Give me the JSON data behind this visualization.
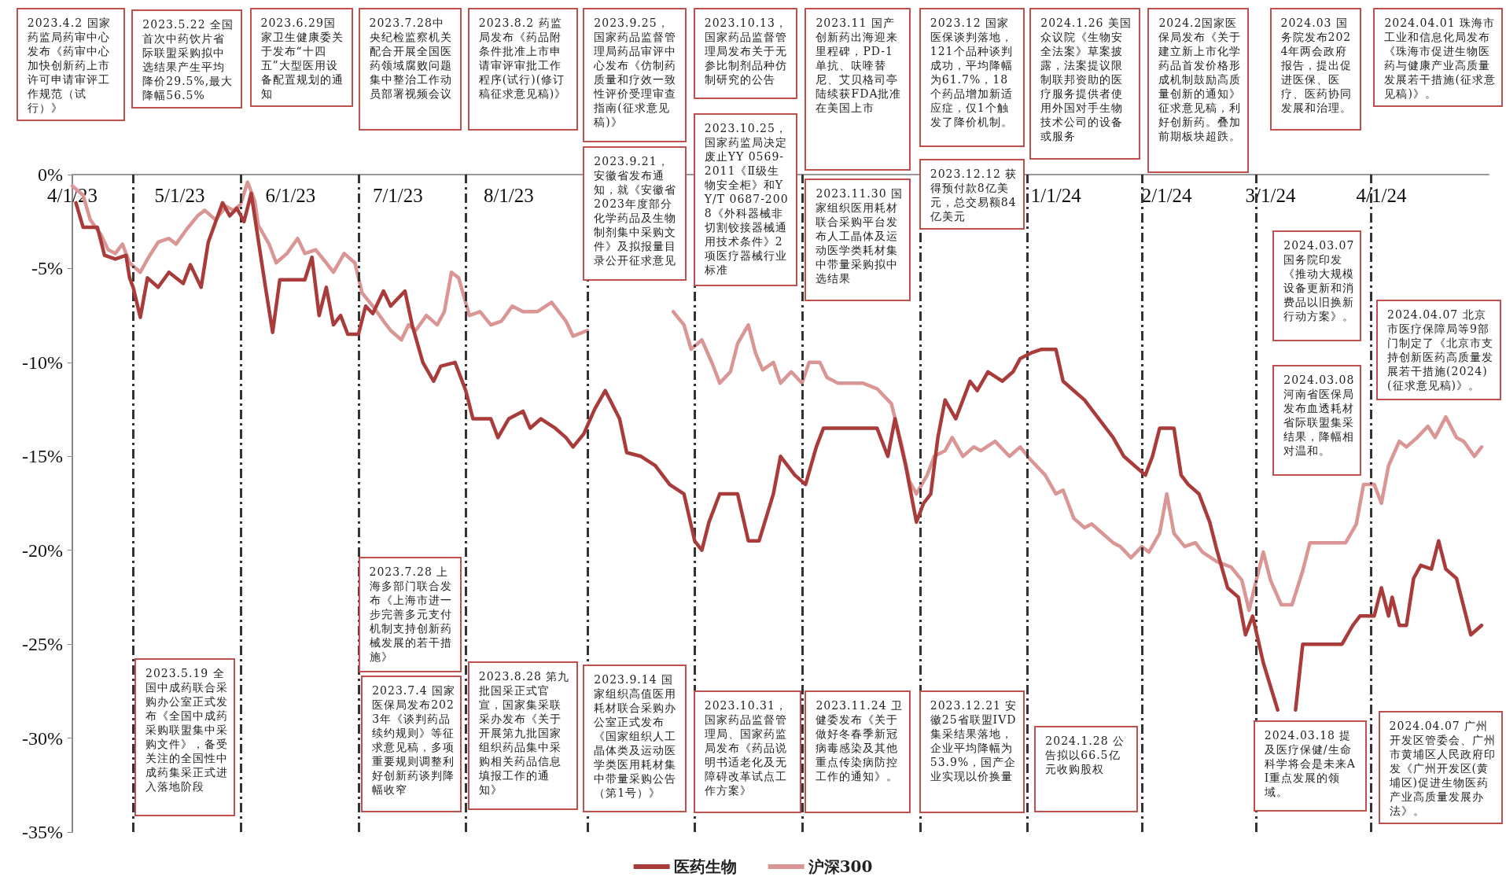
{
  "chart_data": {
    "type": "line",
    "marker": "none",
    "legend": "bottom",
    "xlim": [
      "2023-04-01",
      "2024-05-01"
    ],
    "ylim": [
      -35,
      0
    ],
    "xticks": [
      {
        "value": "2023-04-01",
        "label": "4/1/23"
      },
      {
        "value": "2023-05-01",
        "label": "5/1/23"
      },
      {
        "value": "2023-06-01",
        "label": "6/1/23"
      },
      {
        "value": "2023-07-01",
        "label": "7/1/23"
      },
      {
        "value": "2023-08-01",
        "label": "8/1/23"
      },
      {
        "value": "2024-01-01",
        "label": "1/1/24"
      },
      {
        "value": "2024-02-01",
        "label": "2/1/24"
      },
      {
        "value": "2024-03-01",
        "label": "3/1/24"
      },
      {
        "value": "2024-04-01",
        "label": "4/1/24"
      }
    ],
    "yticks": [
      {
        "value": 0,
        "label": "0%"
      },
      {
        "value": -5,
        "label": "-5%"
      },
      {
        "value": -10,
        "label": "-10%"
      },
      {
        "value": -15,
        "label": "-15%"
      },
      {
        "value": -20,
        "label": "-20%"
      },
      {
        "value": -25,
        "label": "-25%"
      },
      {
        "value": -30,
        "label": "-30%"
      },
      {
        "value": -35,
        "label": "-35%"
      }
    ],
    "series": [
      {
        "name": "医药生物",
        "color": "#a93c3a",
        "x": [
          "2023-04-02",
          "2023-04-04",
          "2023-04-08",
          "2023-04-10",
          "2023-04-13",
          "2023-04-16",
          "2023-04-17",
          "2023-04-18",
          "2023-04-20",
          "2023-04-22",
          "2023-04-25",
          "2023-04-28",
          "2023-05-02",
          "2023-05-04",
          "2023-05-07",
          "2023-05-09",
          "2023-05-13",
          "2023-05-15",
          "2023-05-17",
          "2023-05-19",
          "2023-05-21",
          "2023-05-23",
          "2023-05-25",
          "2023-05-27",
          "2023-05-29",
          "2023-06-05",
          "2023-06-07",
          "2023-06-09",
          "2023-06-11",
          "2023-06-13",
          "2023-06-15",
          "2023-06-17",
          "2023-06-20",
          "2023-06-22",
          "2023-06-24",
          "2023-06-27",
          "2023-06-29",
          "2023-07-03",
          "2023-07-05",
          "2023-07-08",
          "2023-07-11",
          "2023-07-13",
          "2023-07-17",
          "2023-07-20",
          "2023-07-22",
          "2023-07-27",
          "2023-07-29",
          "2023-08-01",
          "2023-08-05",
          "2023-08-07",
          "2023-08-10",
          "2023-08-14",
          "2023-08-17",
          "2023-08-19",
          "2023-08-22",
          "2023-08-25",
          "2023-08-28",
          "2023-09-01",
          "2023-09-03",
          "2023-09-07",
          "2023-09-11",
          "2023-09-15",
          "2023-09-19",
          "2023-09-22",
          "2023-09-24",
          "2023-09-26",
          "2023-09-29",
          "2023-10-04",
          "2023-10-07",
          "2023-10-10",
          "2023-10-14",
          "2023-10-16",
          "2023-10-20",
          "2023-10-23",
          "2023-10-26",
          "2023-10-28",
          "2023-11-08",
          "2023-11-12",
          "2023-11-15",
          "2023-11-17",
          "2023-11-20",
          "2023-11-22",
          "2023-11-23",
          "2023-11-25",
          "2023-11-27",
          "2023-11-29",
          "2023-12-01",
          "2023-12-04",
          "2023-12-06",
          "2023-12-08",
          "2023-12-10",
          "2023-12-13",
          "2023-12-17",
          "2023-12-20",
          "2023-12-22",
          "2023-12-25",
          "2023-12-28",
          "2024-01-01",
          "2024-01-03",
          "2024-01-06",
          "2024-01-09",
          "2024-01-13",
          "2024-01-17",
          "2024-01-20",
          "2024-01-23",
          "2024-01-26",
          "2024-01-28",
          "2024-01-30",
          "2024-02-03",
          "2024-02-05",
          "2024-02-07",
          "2024-02-10",
          "2024-02-13",
          "2024-02-15",
          "2024-02-18",
          "2024-02-21",
          "2024-02-23",
          "2024-02-25",
          "2024-02-28",
          "2024-03-03",
          "2024-03-05",
          "2024-03-08",
          "2024-03-10",
          "2024-03-21",
          "2024-03-24",
          "2024-03-26",
          "2024-03-30",
          "2024-04-01",
          "2024-04-03",
          "2024-04-04",
          "2024-04-06",
          "2024-04-08",
          "2024-04-10",
          "2024-04-12",
          "2024-04-15",
          "2024-04-17",
          "2024-04-19",
          "2024-04-22",
          "2024-04-24",
          "2024-04-26",
          "2024-04-29"
        ],
        "values": [
          -1.5,
          -2.8,
          -2.8,
          -4.3,
          -4.5,
          -4.3,
          -5.5,
          -6,
          -7.6,
          -5.5,
          -6,
          -5.2,
          -5.8,
          -4.8,
          -6,
          -3.6,
          -1.5,
          -2.2,
          -1.8,
          -2.5,
          -1,
          -3.5,
          -6,
          -8.4,
          -5.6,
          -5.6,
          -4.4,
          -7.5,
          -6,
          -8,
          -7.5,
          -8.5,
          -8.5,
          -7,
          -7.4,
          -6.2,
          -7,
          -6.2,
          -8,
          -10,
          -11,
          -10.2,
          -10,
          -11.5,
          -13,
          -13,
          -14,
          -13,
          -12.6,
          -13.5,
          -13,
          -13.5,
          -14,
          -14.5,
          -13.8,
          -12.5,
          -11.5,
          -13,
          -14.8,
          -15,
          -15.5,
          -16.5,
          -17,
          -19.5,
          -20,
          -18.5,
          -17,
          -17,
          -19.5,
          -19.5,
          -17,
          -15,
          -16,
          -16.5,
          -14.5,
          -13.5,
          -13.5,
          -13.5,
          -15,
          -13,
          -15.5,
          -17.5,
          -18.5,
          -17.5,
          -17,
          -14,
          -12,
          -13,
          -12,
          -11,
          -11.5,
          -10.5,
          -11,
          -10.5,
          -9.8,
          -9.5,
          -9.3,
          -9.3,
          -11,
          -11.5,
          -12,
          -13,
          -14,
          -15,
          -15.5,
          -16,
          -15,
          -13.5,
          -13.5,
          -16,
          -16.5,
          -17,
          -18.5,
          -20,
          -22,
          -22.5,
          -24.5,
          -23.5,
          -26,
          -28.5,
          null,
          -28.5,
          -25,
          -25,
          -24,
          -23.5,
          -23.5,
          -22,
          -23.5,
          -22.5,
          -24,
          -24,
          -21.5,
          -20.8,
          -21,
          -19.5,
          -21,
          -21.5,
          -23,
          -24.5,
          -24
        ]
      },
      {
        "name": "沪深300",
        "color": "#d99694",
        "x": [
          "2023-04-01",
          "2023-04-04",
          "2023-04-06",
          "2023-04-09",
          "2023-04-11",
          "2023-04-13",
          "2023-04-15",
          "2023-04-17",
          "2023-04-20",
          "2023-04-22",
          "2023-04-25",
          "2023-04-28",
          "2023-04-30",
          "2023-05-03",
          "2023-05-06",
          "2023-05-08",
          "2023-05-11",
          "2023-05-14",
          "2023-05-16",
          "2023-05-18",
          "2023-05-20",
          "2023-05-22",
          "2023-05-23",
          "2023-05-26",
          "2023-05-28",
          "2023-05-31",
          "2023-06-03",
          "2023-06-05",
          "2023-06-08",
          "2023-06-11",
          "2023-06-13",
          "2023-06-16",
          "2023-06-19",
          "2023-06-21",
          "2023-06-24",
          "2023-06-27",
          "2023-06-29",
          "2023-07-02",
          "2023-07-04",
          "2023-07-06",
          "2023-07-09",
          "2023-07-12",
          "2023-07-14",
          "2023-07-16",
          "2023-07-18",
          "2023-07-21",
          "2023-07-24",
          "2023-07-27",
          "2023-07-30",
          "2023-08-02",
          "2023-08-05",
          "2023-08-09",
          "2023-08-13",
          "2023-08-17",
          "2023-08-19",
          "2023-08-23",
          "2023-08-25",
          "2023-08-26",
          "2023-09-05",
          "2023-09-13",
          "2023-09-16",
          "2023-09-19",
          "2023-09-21",
          "2023-09-24",
          "2023-09-27",
          "2023-09-29",
          "2023-10-02",
          "2023-10-04",
          "2023-10-07",
          "2023-10-09",
          "2023-10-11",
          "2023-10-14",
          "2023-10-16",
          "2023-10-19",
          "2023-10-22",
          "2023-10-24",
          "2023-10-27",
          "2023-10-29",
          "2023-11-01",
          "2023-11-08",
          "2023-11-12",
          "2023-11-16",
          "2023-11-19",
          "2023-11-21",
          "2023-11-23",
          "2023-11-26",
          "2023-11-28",
          "2023-12-01",
          "2023-12-03",
          "2023-12-06",
          "2023-12-09",
          "2023-12-11",
          "2023-12-15",
          "2023-12-19",
          "2023-12-22",
          "2023-12-25",
          "2023-12-29",
          "2024-01-01",
          "2024-01-03",
          "2024-01-06",
          "2024-01-09",
          "2024-01-11",
          "2024-01-14",
          "2024-01-17",
          "2024-01-19",
          "2024-01-22",
          "2024-01-25",
          "2024-01-27",
          "2024-01-30",
          "2024-02-01",
          "2024-02-03",
          "2024-02-06",
          "2024-02-09",
          "2024-02-11",
          "2024-02-15",
          "2024-02-19",
          "2024-02-22",
          "2024-02-24",
          "2024-02-26",
          "2024-02-28",
          "2024-03-01",
          "2024-03-04",
          "2024-03-07",
          "2024-03-10",
          "2024-03-12",
          "2024-03-22",
          "2024-03-25",
          "2024-03-27",
          "2024-03-30",
          "2024-04-01",
          "2024-04-03",
          "2024-04-06",
          "2024-04-08",
          "2024-04-11",
          "2024-04-14",
          "2024-04-16",
          "2024-04-19",
          "2024-04-22",
          "2024-04-24",
          "2024-04-27",
          "2024-04-29"
        ],
        "values": [
          -0.6,
          -1.1,
          -2.4,
          -3.2,
          -4,
          -4.2,
          -3.7,
          -4.7,
          -5.2,
          -4.5,
          -3.6,
          -3.4,
          -3.7,
          -2.9,
          -2.2,
          -1.9,
          -2.4,
          -1.7,
          -1.9,
          -1.6,
          -0.4,
          -1.4,
          -2.7,
          -3.7,
          -4.7,
          -4.2,
          -3.4,
          -4.2,
          -4,
          -4.7,
          -5.2,
          -4.2,
          -4.7,
          -6.3,
          -7,
          -7.8,
          -8.3,
          -8.8,
          -8,
          -8.3,
          -7.5,
          -8,
          -7.3,
          -5.2,
          -5.5,
          -7.5,
          -7.3,
          -8,
          -7.8,
          -7,
          -7.3,
          -7.3,
          -6.8,
          -7.8,
          -8.6,
          -8.3,
          null,
          null,
          null,
          null,
          -7.3,
          -8,
          -9.3,
          -8.8,
          -10.1,
          -11.1,
          -10.5,
          -9,
          -8,
          -9.5,
          -10.4,
          -10,
          -11.1,
          -10.5,
          -11.1,
          -10,
          -10,
          -10.8,
          -11.1,
          -11.1,
          -11.4,
          -12.2,
          -14.5,
          -16.3,
          -17,
          -16,
          -15,
          -14.7,
          -14,
          -15,
          -14.5,
          -14.7,
          -14.2,
          -15,
          -14.5,
          -15.2,
          -16,
          -17,
          -16.8,
          -18.3,
          -18.8,
          -18.6,
          -19.1,
          -19.6,
          -19.8,
          -20.4,
          -19.8,
          -20.1,
          -19.1,
          -17,
          -19.1,
          -19.8,
          -19.6,
          -20.1,
          -20.6,
          -20.9,
          -21.6,
          -23.2,
          -21.6,
          -20.1,
          -21.6,
          -22.9,
          -22.9,
          -21.1,
          -19.6,
          -19.6,
          -18.6,
          -16.5,
          -16.5,
          -17.5,
          -15.5,
          -14.2,
          -14.5,
          -14,
          -13.4,
          -14,
          -12.9,
          -14,
          -14.2,
          -15,
          -14.5
        ]
      }
    ],
    "ref_lines": [
      {
        "axis": "x",
        "value": "2023-04-18",
        "color": "#333333",
        "line_style": "dashed"
      },
      {
        "axis": "x",
        "value": "2023-05-18",
        "color": "#333333",
        "line_style": "dashed"
      },
      {
        "axis": "x",
        "value": "2023-06-20",
        "color": "#333333",
        "line_style": "dashed"
      },
      {
        "axis": "x",
        "value": "2023-07-20",
        "color": "#333333",
        "line_style": "dashed"
      },
      {
        "axis": "x",
        "value": "2023-08-23",
        "color": "#333333",
        "line_style": "dashed"
      },
      {
        "axis": "x",
        "value": "2023-09-22",
        "color": "#333333",
        "line_style": "dashed"
      },
      {
        "axis": "x",
        "value": "2023-10-22",
        "color": "#333333",
        "line_style": "dashed"
      },
      {
        "axis": "x",
        "value": "2023-11-24",
        "color": "#333333",
        "line_style": "dashed"
      },
      {
        "axis": "x",
        "value": "2023-12-24",
        "color": "#333333",
        "line_style": "dashed"
      },
      {
        "axis": "x",
        "value": "2024-01-25",
        "color": "#333333",
        "line_style": "dashed"
      },
      {
        "axis": "x",
        "value": "2024-02-26",
        "color": "#333333",
        "line_style": "dashed"
      },
      {
        "axis": "x",
        "value": "2024-03-29",
        "color": "#333333",
        "line_style": "dashed"
      }
    ],
    "annotations": [
      "2023.4.2 国家药监局药审中心发布《药审中心加快创新药上市许可申请审评工作规范（试行）》",
      "2023.5.22 全国首次中药饮片省际联盟采购拟中选结果产生平均降价29.5%,最大降幅56.5%",
      "2023.6.29国家卫生健康委关于发布“十四五”大型医用设备配置规划的通知",
      "2023.7.28中央纪检监察机关配合开展全国医药领域腐败问题集中整治工作动员部署视频会议",
      "2023.8.2 药监局发布《药品附条件批准上市申请审评审批工作程序(试行)(修订稿征求意见稿)》",
      "2023.9.25，国家药品监督管理局药品审评中心发布《仿制药质量和疗效一致性评价受理审查指南(征求意见稿)》",
      "2023.10.13，国家药品监督管理局发布关于无参比制剂品种仿制研究的公告",
      "2023.11 国产创新药出海迎来里程碑，PD-1单抗、呋喹替尼、艾贝格司亭陆续获FDA批准在美国上市",
      "2023.12 国家医保谈判落地，121个品种谈判成功，平均降幅为61.7%，18个药品增加新适应症，仅1个触发了降价机制。",
      "2024.1.26 美国众议院《生物安全法案》草案披露，法案提议限制联邦资助的医疗服务提供者使用外国对手生物技术公司的设备或服务",
      "2024.2国家医保局发布《关于建立新上市化学药品首发价格形成机制鼓励高质量创新的通知》征求意见稿，利好创新药。叠加前期板块超跌。",
      "2024.03 国务院发布2024年两会政府报告，提出促进医保、医疗、医药协同发展和治理。",
      "2024.04.01 珠海市工业和信息化局发布《珠海市促进生物医药与健康产业高质量发展若干措施(征求意见稿)》。",
      "2023.9.21，安徽省发布通知，就《安徽省2023年度部分化学药品及生物制剂集中采购文件》及拟报量目录公开征求意见",
      "2023.10.25，国家药监局决定废止YY 0569-2011《Ⅱ级生物安全柜》和YY/T 0687-2008《外科器械非切割铰接器械通用技术条件》2项医疗器械行业标准",
      "2023.11.30 国家组织医用耗材联合采购平台发布人工晶体及运动医学类耗材集中带量采购拟中选结果",
      "2023.12.12 获得预付款8亿美元，总交易额84亿美元",
      "2024.03.07 国务院印发《推动大规模设备更新和消费品以旧换新行动方案》。",
      "2024.03.08 河南省医保局发布血透耗材省际联盟集采结果，降幅相对温和。",
      "2024.04.07 北京市医疗保障局等9部门制定了《北京市支持创新医药高质量发展若干措施(2024)(征求意见稿)》。",
      "2023.7.28 上海多部门联合发布《上海市进一步完善多元支付机制支持创新药械发展的若干措施》",
      "2023.5.19 全国中成药联合采购办公室正式发布《全国中成药采购联盟集中采购文件》，备受关注的全国性中成药集采正式进入落地阶段",
      "2023.7.4 国家医保局发布2023年《谈判药品续约规则》等征求意见稿，多项重要规则调整利好创新药谈判降幅收窄",
      "2023.8.28 第九批国采正式官宣，国家集采联采办发布《关于开展第九批国家组织药品集中采购相关药品信息填报工作的通知》",
      "2023.9.14 国家组织高值医用耗材联合采购办公室正式发布《国家组织人工晶体类及运动医学类医用耗材集中带量采购公告（第1号）》",
      "2023.10.31，国家药品监督管理局、国家药监局发布《药品说明书适老化及无障碍改革试点工作方案》",
      "2023.11.24 卫健委发布《关于做好冬春季新冠病毒感染及其他重点传染病防控工作的通知》。",
      "2023.12.21 安徽25省联盟IVD集采结果落地，企业平均降幅为53.9%，国产企业实现以价换量",
      "2024.1.28 公告拟以66.5亿元收购股权",
      "2024.03.18 提及医疗保健/生命科学将会是未来AI重点发展的领域。",
      "2024.04.07 广州开发区管委会、广州市黄埔区人民政府印发《广州开发区(黄埔区)促进生物医药产业高质量发展办法》。"
    ]
  }
}
